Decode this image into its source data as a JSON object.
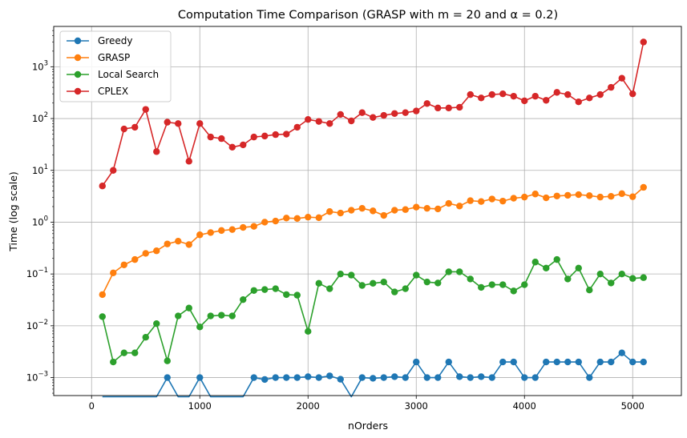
{
  "chart_data": {
    "type": "line",
    "title": "Computation Time Comparison (GRASP with m = 20 and α = 0.2)",
    "xlabel": "nOrders",
    "ylabel": "Time (log scale)",
    "yscale": "log",
    "xlim": [
      -350,
      5450
    ],
    "ylim": [
      0.00045,
      6000
    ],
    "grid": true,
    "legend_position": "top-left",
    "x_ticks": [
      0,
      1000,
      2000,
      3000,
      4000,
      5000
    ],
    "x_tick_labels": [
      "0",
      "1000",
      "2000",
      "3000",
      "4000",
      "5000"
    ],
    "y_ticks": [
      0.001,
      0.01,
      0.1,
      1,
      10,
      100,
      1000
    ],
    "y_tick_labels": [
      {
        "base": "10",
        "exp": "−3"
      },
      {
        "base": "10",
        "exp": "−2"
      },
      {
        "base": "10",
        "exp": "−1"
      },
      {
        "base": "10",
        "exp": "0"
      },
      {
        "base": "10",
        "exp": "1"
      },
      {
        "base": "10",
        "exp": "2"
      },
      {
        "base": "10",
        "exp": "3"
      }
    ],
    "x": [
      100,
      200,
      300,
      400,
      500,
      600,
      700,
      800,
      900,
      1000,
      1100,
      1200,
      1300,
      1400,
      1500,
      1600,
      1700,
      1800,
      1900,
      2000,
      2100,
      2200,
      2300,
      2400,
      2500,
      2600,
      2700,
      2800,
      2900,
      3000,
      3100,
      3200,
      3300,
      3400,
      3500,
      3600,
      3700,
      3800,
      3900,
      4000,
      4100,
      4200,
      4300,
      4400,
      4500,
      4600,
      4700,
      4800,
      4900,
      5000,
      5100
    ],
    "series": [
      {
        "name": "Greedy",
        "color": "#1f77b4",
        "values": [
          0,
          0,
          0,
          0,
          0,
          0,
          0.001,
          0,
          0,
          0.001,
          0,
          0,
          0,
          0,
          0.001,
          0.00092,
          0.001,
          0.001,
          0.001,
          0.00104,
          0.001,
          0.00108,
          0.00093,
          0,
          0.001,
          0.00097,
          0.001,
          0.00104,
          0.001,
          0.002,
          0.001,
          0.001,
          0.002,
          0.00104,
          0.001,
          0.00104,
          0.001,
          0.002,
          0.002,
          0.001,
          0.001,
          0.002,
          0.002,
          0.002,
          0.002,
          0.001,
          0.002,
          0.002,
          0.003,
          0.002,
          0.002
        ]
      },
      {
        "name": "GRASP",
        "color": "#ff7f0e",
        "values": [
          0.04,
          0.105,
          0.15,
          0.19,
          0.25,
          0.28,
          0.38,
          0.43,
          0.37,
          0.57,
          0.63,
          0.69,
          0.72,
          0.79,
          0.83,
          1.0,
          1.05,
          1.2,
          1.18,
          1.25,
          1.22,
          1.6,
          1.5,
          1.7,
          1.85,
          1.65,
          1.35,
          1.7,
          1.75,
          1.95,
          1.85,
          1.8,
          2.3,
          2.05,
          2.6,
          2.5,
          2.8,
          2.55,
          2.9,
          3.05,
          3.5,
          2.95,
          3.2,
          3.3,
          3.4,
          3.25,
          3.05,
          3.15,
          3.55,
          3.1,
          4.7
        ]
      },
      {
        "name": "Local Search",
        "color": "#2ca02c",
        "values": [
          0.015,
          0.002,
          0.003,
          0.003,
          0.006,
          0.011,
          0.0021,
          0.0155,
          0.022,
          0.0095,
          0.0155,
          0.016,
          0.0155,
          0.032,
          0.048,
          0.05,
          0.052,
          0.04,
          0.039,
          0.0078,
          0.066,
          0.052,
          0.1,
          0.095,
          0.06,
          0.066,
          0.07,
          0.045,
          0.052,
          0.095,
          0.07,
          0.067,
          0.11,
          0.11,
          0.08,
          0.055,
          0.062,
          0.062,
          0.047,
          0.062,
          0.17,
          0.13,
          0.19,
          0.08,
          0.13,
          0.049,
          0.1,
          0.067,
          0.1,
          0.082,
          0.085
        ]
      },
      {
        "name": "CPLEX",
        "color": "#d62728",
        "values": [
          5,
          10,
          63,
          68,
          150,
          23,
          85,
          80,
          15,
          80,
          44,
          41,
          28,
          31,
          44,
          46,
          49,
          50,
          68,
          96,
          88,
          80,
          120,
          90,
          130,
          105,
          115,
          125,
          130,
          140,
          195,
          160,
          160,
          165,
          290,
          250,
          290,
          300,
          270,
          220,
          270,
          225,
          320,
          290,
          210,
          250,
          290,
          400,
          600,
          300,
          3000
        ]
      }
    ]
  }
}
